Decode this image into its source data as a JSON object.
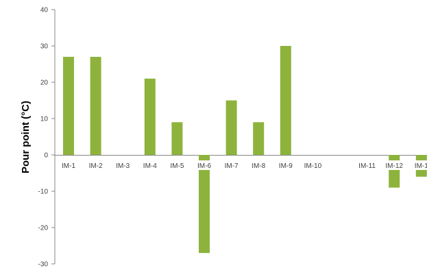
{
  "chart_data": {
    "type": "bar",
    "ylabel": "Pour point (°C)",
    "xlabel": "",
    "ylim": [
      -30,
      40
    ],
    "yticks": [
      -30,
      -20,
      -10,
      0,
      10,
      20,
      30,
      40
    ],
    "grid": false,
    "legend": "none",
    "bar_color": "#8db33d",
    "categories": [
      "IM-1",
      "IM-2",
      "IM-3",
      "IM-4",
      "IM-5",
      "IM-6",
      "IM-7",
      "IM-8",
      "IM-9",
      "IM-10",
      "",
      "IM-11",
      "IM-12",
      "IM-1"
    ],
    "values": [
      27,
      27,
      null,
      21,
      9,
      -27,
      15,
      9,
      30,
      null,
      null,
      null,
      -9,
      -6
    ]
  }
}
